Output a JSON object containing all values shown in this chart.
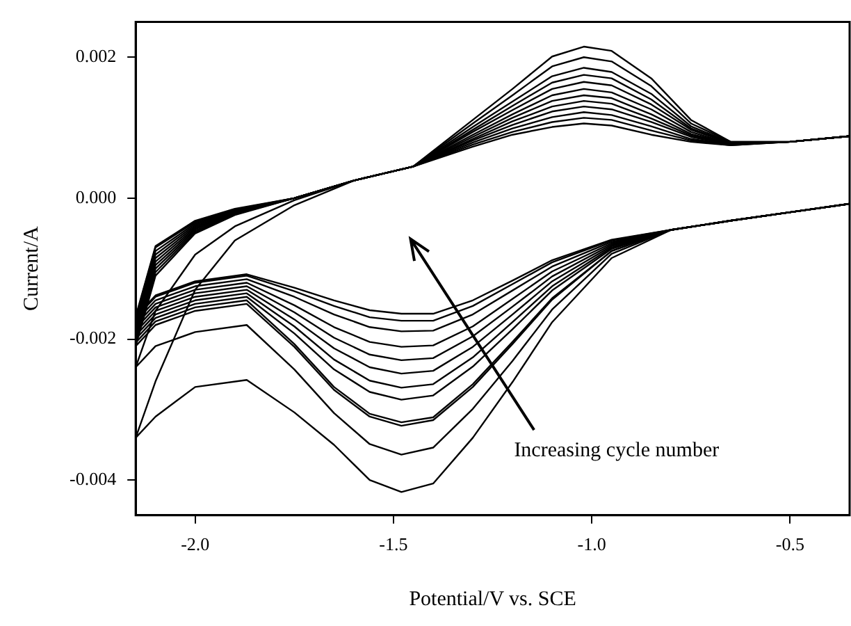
{
  "chart_data": {
    "type": "line",
    "xlabel": "Potential/V vs. SCE",
    "ylabel": "Current/A",
    "annotations": [
      "Increasing cycle number"
    ],
    "xlim": [
      -2.15,
      -0.35
    ],
    "ylim": [
      -0.0045,
      0.0025
    ],
    "xticks": [
      {
        "value": -2,
        "label": "-2.0"
      },
      {
        "value": -1.5,
        "label": "-1.5"
      },
      {
        "value": -1,
        "label": "-1.0"
      },
      {
        "value": -0.5,
        "label": "-0.5"
      }
    ],
    "yticks": [
      {
        "value": -0.004,
        "label": "-0.004"
      },
      {
        "value": -0.002,
        "label": "-0.002"
      },
      {
        "value": 0,
        "label": "0.000"
      },
      {
        "value": 0.002,
        "label": "0.002"
      }
    ],
    "grid": false,
    "legend": false,
    "marker": "none",
    "line_style": "solid",
    "x": [
      -0.35,
      -0.5,
      -0.65,
      -0.8,
      -0.95,
      -1.1,
      -1.2,
      -1.3,
      -1.4,
      -1.48,
      -1.56,
      -1.65,
      -1.75,
      -1.87,
      -2.0,
      -2.1,
      -2.15,
      -2.1,
      -2.0,
      -1.9,
      -1.75,
      -1.6,
      -1.45,
      -1.3,
      -1.2,
      -1.1,
      -1.02,
      -0.95,
      -0.85,
      -0.75,
      -0.65,
      -0.5,
      -0.35
    ],
    "series": [
      {
        "color": "#000000",
        "values": [
          -8e-05,
          -0.0002,
          -0.00032,
          -0.00045,
          -0.00085,
          -0.00176,
          -0.00261,
          -0.0034,
          -0.00405,
          -0.00417,
          -0.004,
          -0.0035,
          -0.00304,
          -0.00258,
          -0.00268,
          -0.0031,
          -0.0034,
          -0.0026,
          -0.0013,
          -0.0006,
          -0.0001,
          0.00025,
          0.00045,
          0.00111,
          0.00155,
          0.00201,
          0.00215,
          0.00209,
          0.0017,
          0.00111,
          0.0008,
          0.0008,
          0.00088
        ]
      },
      {
        "color": "#000000",
        "values": [
          -8e-05,
          -0.0002,
          -0.00032,
          -0.00045,
          -0.00079,
          -0.00158,
          -0.00231,
          -0.00299,
          -0.00354,
          -0.00364,
          -0.00349,
          -0.00305,
          -0.00243,
          -0.0018,
          -0.0019,
          -0.0021,
          -0.0024,
          -0.0016,
          -0.0008,
          -0.0004,
          -3e-05,
          0.00025,
          0.00045,
          0.00106,
          0.00146,
          0.00187,
          0.002,
          0.00194,
          0.00159,
          0.00106,
          0.0008,
          0.0008,
          0.00088
        ]
      },
      {
        "color": "#000000",
        "values": [
          -8e-05,
          -0.0002,
          -0.00032,
          -0.00045,
          -0.00075,
          -0.00144,
          -0.00207,
          -0.00268,
          -0.00315,
          -0.00323,
          -0.0031,
          -0.00272,
          -0.00211,
          -0.0015,
          -0.0016,
          -0.0018,
          -0.0021,
          -0.0011,
          -0.0005,
          -0.00024,
          0,
          0.00025,
          0.00045,
          0.00101,
          0.00137,
          0.00173,
          0.00185,
          0.00179,
          0.00148,
          0.00102,
          0.00079,
          0.0008,
          0.00088
        ]
      },
      {
        "color": "#000000",
        "values": [
          -8e-05,
          -0.0002,
          -0.00032,
          -0.00045,
          -0.00075,
          -0.00142,
          -0.00204,
          -0.00264,
          -0.00311,
          -0.00318,
          -0.00306,
          -0.00268,
          -0.00207,
          -0.00145,
          -0.00155,
          -0.00175,
          -0.00205,
          -0.00105,
          -0.00048,
          -0.00023,
          0,
          0.00025,
          0.00045,
          0.00097,
          0.00131,
          0.00164,
          0.00175,
          0.0017,
          0.0014,
          0.00099,
          0.00078,
          0.0008,
          0.00088
        ]
      },
      {
        "color": "#000000",
        "values": [
          -8e-05,
          -0.0002,
          -0.00032,
          -0.00045,
          -0.00072,
          -0.00131,
          -0.00186,
          -0.00239,
          -0.0028,
          -0.00286,
          -0.00275,
          -0.00243,
          -0.00192,
          -0.0014,
          -0.0015,
          -0.0017,
          -0.002,
          -0.001,
          -0.00046,
          -0.00022,
          0,
          0.00025,
          0.00045,
          0.00094,
          0.00125,
          0.00155,
          0.00165,
          0.0016,
          0.00133,
          0.00097,
          0.00078,
          0.0008,
          0.00088
        ]
      },
      {
        "color": "#000000",
        "values": [
          -8e-05,
          -0.0002,
          -0.00032,
          -0.00045,
          -0.0007,
          -0.00125,
          -0.00176,
          -0.00226,
          -0.00264,
          -0.00269,
          -0.00259,
          -0.00229,
          -0.00182,
          -0.00135,
          -0.00145,
          -0.00165,
          -0.00195,
          -0.00095,
          -0.00044,
          -0.00021,
          0,
          0.00025,
          0.00045,
          0.0009,
          0.00119,
          0.00146,
          0.00155,
          0.0015,
          0.00126,
          0.00094,
          0.00077,
          0.0008,
          0.00088
        ]
      },
      {
        "color": "#000000",
        "values": [
          -8e-05,
          -0.0002,
          -0.00032,
          -0.00045,
          -0.00068,
          -0.00118,
          -0.00165,
          -0.00211,
          -0.00245,
          -0.00249,
          -0.0024,
          -0.00213,
          -0.00172,
          -0.0013,
          -0.0014,
          -0.0016,
          -0.0019,
          -0.0009,
          -0.00042,
          -0.0002,
          0,
          0.00025,
          0.00045,
          0.00087,
          0.00114,
          0.00138,
          0.00146,
          0.00142,
          0.00119,
          0.00091,
          0.00077,
          0.0008,
          0.00088
        ]
      },
      {
        "color": "#000000",
        "values": [
          -8e-05,
          -0.0002,
          -0.00032,
          -0.00045,
          -0.00066,
          -0.00111,
          -0.00154,
          -0.00196,
          -0.00227,
          -0.0023,
          -0.00222,
          -0.00198,
          -0.00162,
          -0.00125,
          -0.00135,
          -0.00155,
          -0.00185,
          -0.00085,
          -0.0004,
          -0.00019,
          0,
          0.00025,
          0.00045,
          0.00084,
          0.00109,
          0.0013,
          0.00138,
          0.00134,
          0.00113,
          0.00089,
          0.00077,
          0.0008,
          0.00088
        ]
      },
      {
        "color": "#000000",
        "values": [
          -8e-05,
          -0.0002,
          -0.00032,
          -0.00045,
          -0.00064,
          -0.00104,
          -0.00143,
          -0.00182,
          -0.00209,
          -0.00211,
          -0.00204,
          -0.00183,
          -0.00152,
          -0.0012,
          -0.0013,
          -0.0015,
          -0.0018,
          -0.0008,
          -0.00038,
          -0.00018,
          0,
          0.00025,
          0.00045,
          0.00082,
          0.00104,
          0.00123,
          0.0013,
          0.00126,
          0.00108,
          0.00087,
          0.00076,
          0.0008,
          0.00088
        ]
      },
      {
        "color": "#000000",
        "values": [
          -8e-05,
          -0.0002,
          -0.00032,
          -0.00045,
          -0.00062,
          -0.00097,
          -0.00131,
          -0.00165,
          -0.00188,
          -0.00189,
          -0.00183,
          -0.00165,
          -0.0014,
          -0.00115,
          -0.00125,
          -0.00145,
          -0.00175,
          -0.00075,
          -0.00036,
          -0.00017,
          0,
          0.00025,
          0.00045,
          0.00079,
          0.00099,
          0.00115,
          0.00122,
          0.00118,
          0.00102,
          0.00084,
          0.00076,
          0.0008,
          0.00088
        ]
      },
      {
        "color": "#000000",
        "values": [
          -8e-05,
          -0.0002,
          -0.00032,
          -0.00045,
          -0.0006,
          -0.00091,
          -0.00122,
          -0.00153,
          -0.00174,
          -0.00174,
          -0.00169,
          -0.00153,
          -0.00132,
          -0.0011,
          -0.0012,
          -0.0014,
          -0.0017,
          -0.0007,
          -0.00034,
          -0.00016,
          0,
          0.00025,
          0.00045,
          0.00076,
          0.00094,
          0.00108,
          0.00114,
          0.00111,
          0.00096,
          0.00082,
          0.00075,
          0.0008,
          0.00088
        ]
      },
      {
        "color": "#000000",
        "values": [
          -8e-05,
          -0.0002,
          -0.00032,
          -0.00045,
          -0.00059,
          -0.00088,
          -0.00117,
          -0.00145,
          -0.00164,
          -0.00164,
          -0.00159,
          -0.00145,
          -0.00127,
          -0.00108,
          -0.00118,
          -0.00138,
          -0.00168,
          -0.00068,
          -0.00032,
          -0.00015,
          0,
          0.00025,
          0.00045,
          0.00073,
          0.0009,
          0.00101,
          0.00106,
          0.00103,
          0.0009,
          0.0008,
          0.00075,
          0.0008,
          0.00088
        ]
      }
    ]
  }
}
